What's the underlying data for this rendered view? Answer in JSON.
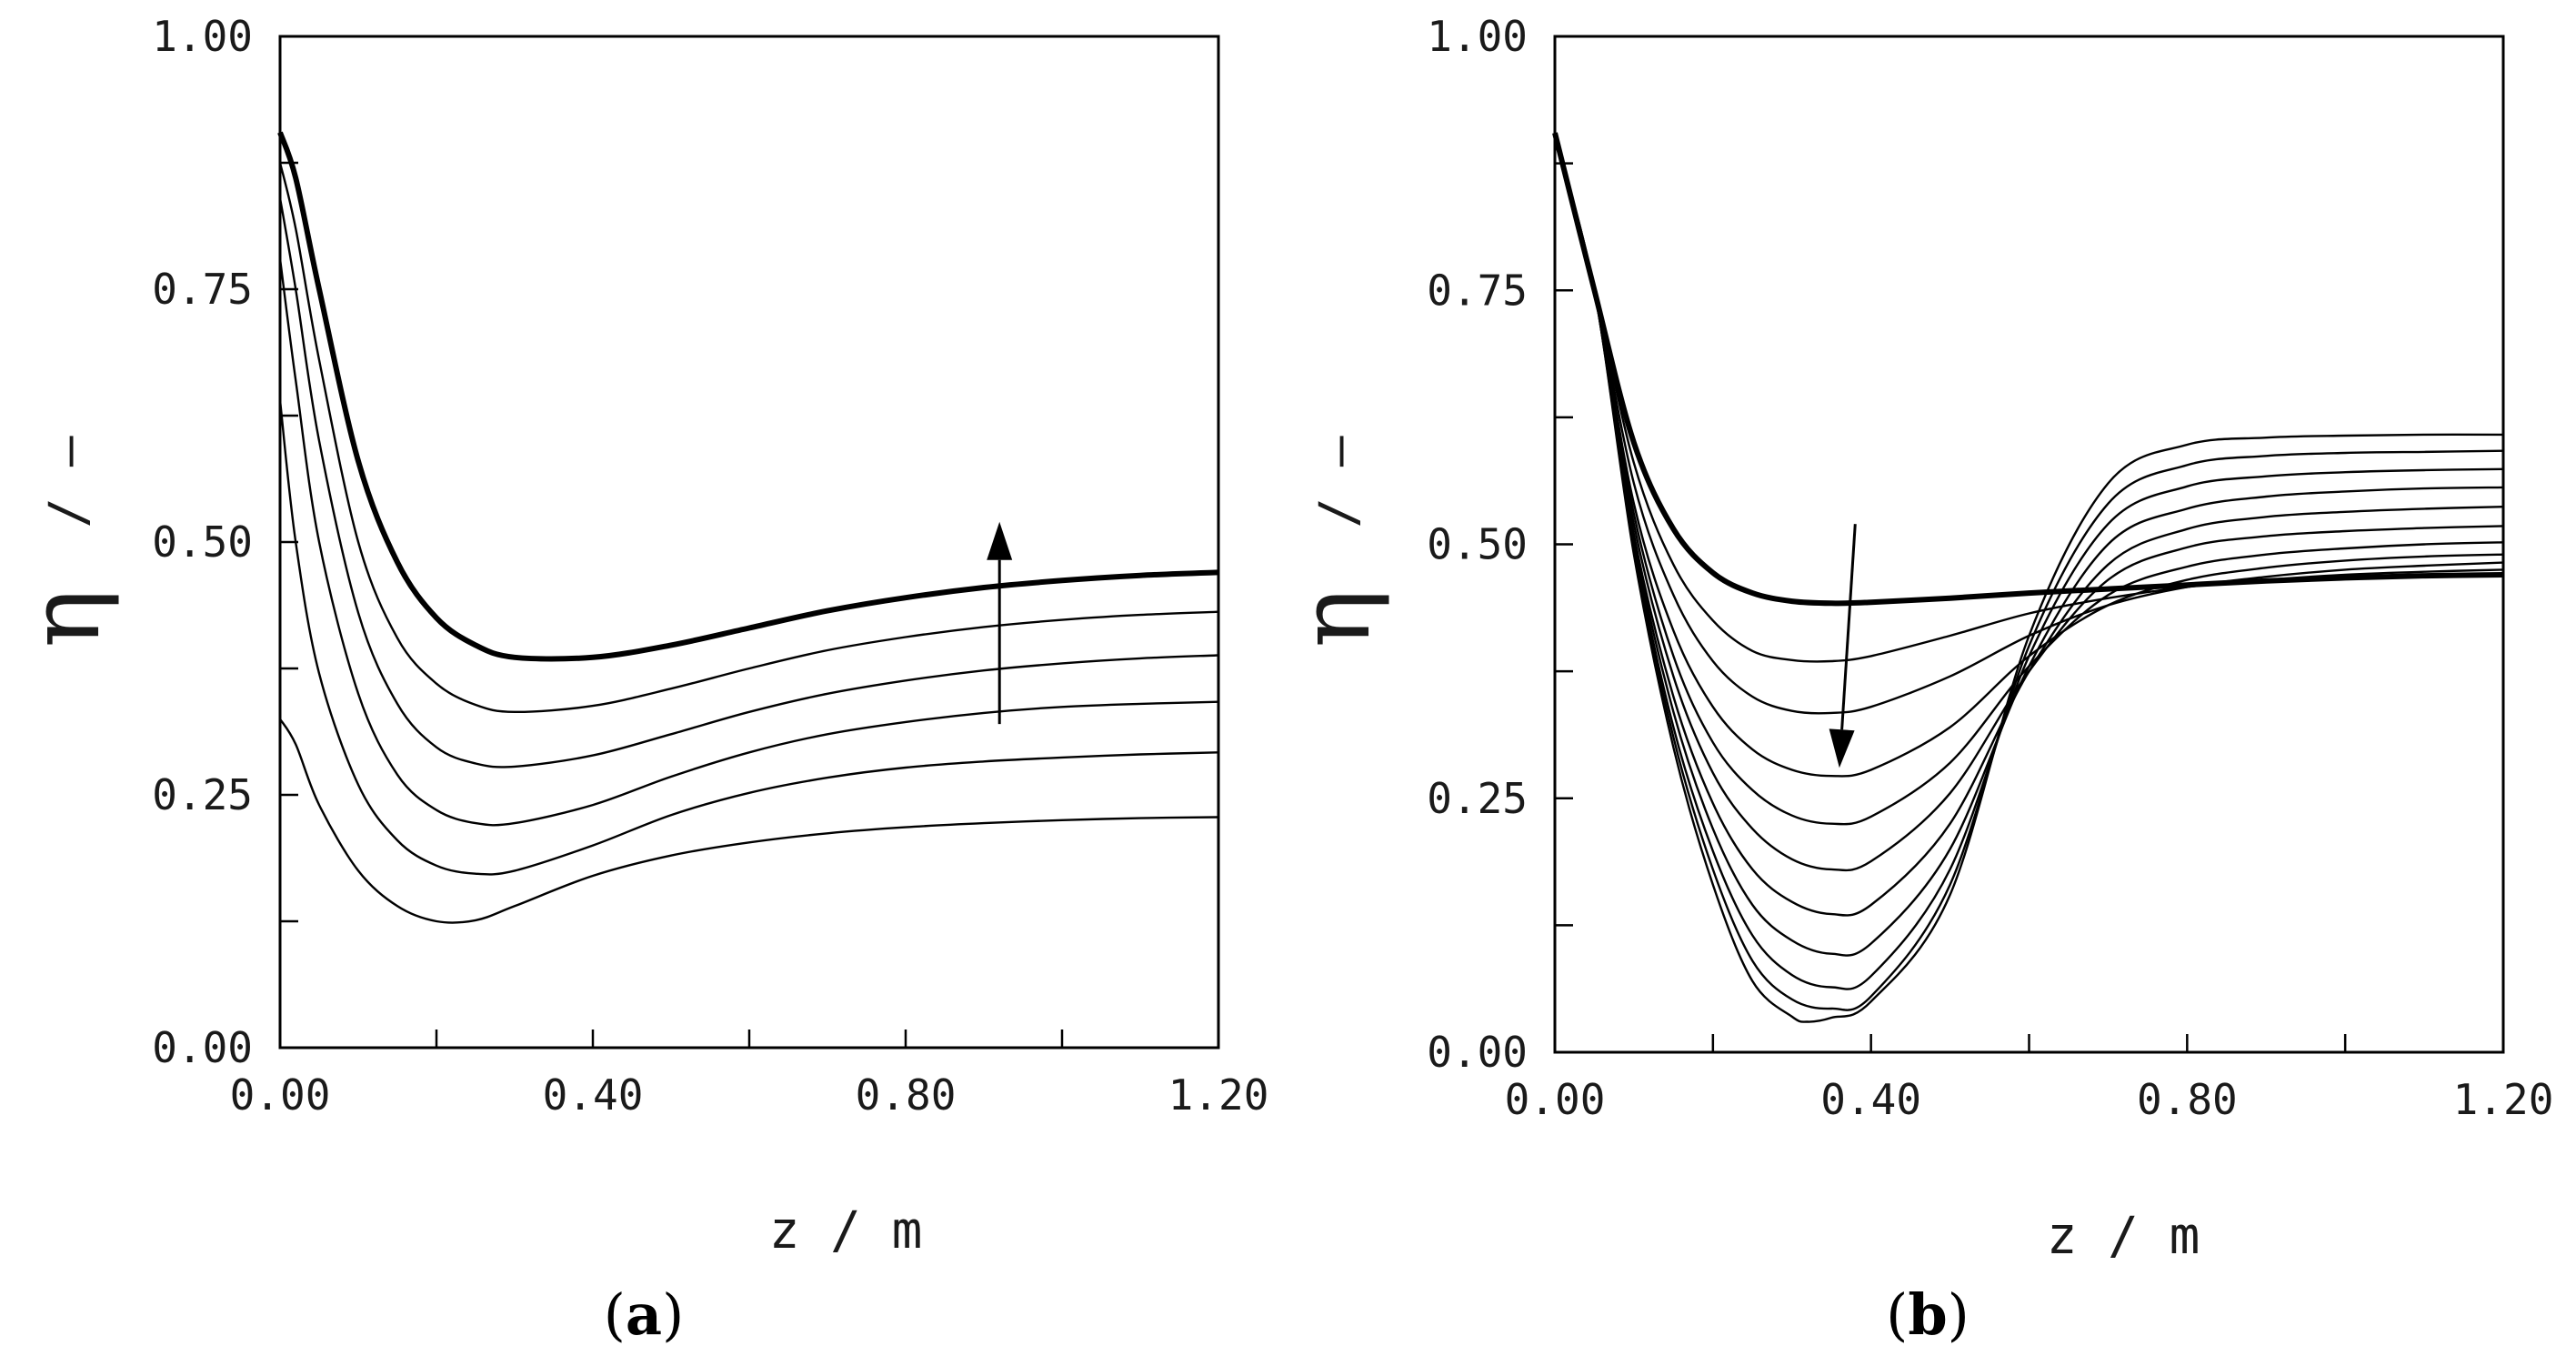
{
  "chart_data": [
    {
      "panel": "a",
      "panel_label": "(a)",
      "panel_letter": "a",
      "type": "line",
      "xlabel": "z / m",
      "ylabel_symbol": "η",
      "ylabel_unit": "/ –",
      "xlim": [
        0,
        1.2
      ],
      "ylim": [
        0,
        1
      ],
      "x_ticks": [
        "0.00",
        "0.40",
        "0.80",
        "1.20"
      ],
      "y_ticks": [
        "0.00",
        "0.25",
        "0.50",
        "0.75",
        "1.00"
      ],
      "arrow_direction": "up",
      "arrow_x": 0.92,
      "arrow_y": [
        0.32,
        0.52
      ],
      "series": [
        {
          "name": "curve-1",
          "x": [
            0,
            0.02,
            0.05,
            0.1,
            0.15,
            0.2,
            0.25,
            0.3,
            0.4,
            0.5,
            0.6,
            0.7,
            0.8,
            0.9,
            1.0,
            1.1,
            1.2
          ],
          "y": [
            0.325,
            0.3,
            0.24,
            0.175,
            0.14,
            0.125,
            0.126,
            0.14,
            0.17,
            0.19,
            0.203,
            0.212,
            0.218,
            0.222,
            0.225,
            0.227,
            0.228
          ]
        },
        {
          "name": "curve-2",
          "x": [
            0,
            0.02,
            0.05,
            0.1,
            0.15,
            0.2,
            0.25,
            0.3,
            0.4,
            0.5,
            0.6,
            0.7,
            0.8,
            0.9,
            1.0,
            1.1,
            1.2
          ],
          "y": [
            0.64,
            0.5,
            0.37,
            0.26,
            0.205,
            0.18,
            0.172,
            0.175,
            0.2,
            0.23,
            0.252,
            0.267,
            0.277,
            0.283,
            0.287,
            0.29,
            0.292
          ]
        },
        {
          "name": "curve-3",
          "x": [
            0,
            0.02,
            0.05,
            0.1,
            0.15,
            0.2,
            0.25,
            0.3,
            0.4,
            0.5,
            0.6,
            0.7,
            0.8,
            0.9,
            1.0,
            1.1,
            1.2
          ],
          "y": [
            0.78,
            0.66,
            0.5,
            0.35,
            0.27,
            0.235,
            0.222,
            0.222,
            0.24,
            0.268,
            0.292,
            0.31,
            0.322,
            0.331,
            0.337,
            0.34,
            0.342
          ]
        },
        {
          "name": "curve-4",
          "x": [
            0,
            0.02,
            0.05,
            0.1,
            0.15,
            0.2,
            0.25,
            0.3,
            0.4,
            0.5,
            0.6,
            0.7,
            0.8,
            0.9,
            1.0,
            1.1,
            1.2
          ],
          "y": [
            0.84,
            0.75,
            0.6,
            0.43,
            0.34,
            0.297,
            0.281,
            0.278,
            0.289,
            0.31,
            0.332,
            0.35,
            0.363,
            0.373,
            0.38,
            0.385,
            0.388
          ]
        },
        {
          "name": "curve-5",
          "x": [
            0,
            0.02,
            0.05,
            0.1,
            0.15,
            0.2,
            0.25,
            0.3,
            0.4,
            0.5,
            0.6,
            0.7,
            0.8,
            0.9,
            1.0,
            1.1,
            1.2
          ],
          "y": [
            0.875,
            0.81,
            0.68,
            0.5,
            0.405,
            0.36,
            0.339,
            0.332,
            0.338,
            0.355,
            0.375,
            0.393,
            0.406,
            0.416,
            0.423,
            0.428,
            0.431
          ]
        },
        {
          "name": "curve-6-bold",
          "bold": true,
          "x": [
            0,
            0.02,
            0.05,
            0.1,
            0.15,
            0.2,
            0.25,
            0.3,
            0.4,
            0.5,
            0.6,
            0.7,
            0.8,
            0.9,
            1.0,
            1.1,
            1.2
          ],
          "y": [
            0.905,
            0.86,
            0.75,
            0.58,
            0.48,
            0.425,
            0.398,
            0.386,
            0.386,
            0.398,
            0.415,
            0.432,
            0.445,
            0.455,
            0.462,
            0.467,
            0.47
          ]
        }
      ]
    },
    {
      "panel": "b",
      "panel_label": "(b)",
      "panel_letter": "b",
      "type": "line",
      "xlabel": "z / m",
      "ylabel_symbol": "η",
      "ylabel_unit": "/ –",
      "xlim": [
        0,
        1.2
      ],
      "ylim": [
        0,
        1
      ],
      "x_ticks": [
        "0.00",
        "0.40",
        "0.80",
        "1.20"
      ],
      "y_ticks": [
        "0.00",
        "0.25",
        "0.50",
        "0.75",
        "1.00"
      ],
      "arrow_direction": "down",
      "arrow_x": [
        0.38,
        0.36
      ],
      "arrow_y": [
        0.52,
        0.28
      ],
      "series": [
        {
          "name": "curve-1-bold",
          "bold": true,
          "x": [
            0,
            0.05,
            0.1,
            0.15,
            0.2,
            0.25,
            0.3,
            0.35,
            0.4,
            0.5,
            0.6,
            0.7,
            0.8,
            0.9,
            1.0,
            1.1,
            1.2
          ],
          "y": [
            0.905,
            0.75,
            0.6,
            0.515,
            0.472,
            0.452,
            0.444,
            0.442,
            0.443,
            0.447,
            0.452,
            0.456,
            0.46,
            0.464,
            0.467,
            0.469,
            0.47
          ]
        },
        {
          "name": "curve-2",
          "x": [
            0,
            0.05,
            0.1,
            0.15,
            0.2,
            0.25,
            0.3,
            0.35,
            0.4,
            0.5,
            0.6,
            0.7,
            0.8,
            0.9,
            1.0,
            1.1,
            1.2
          ],
          "y": [
            0.9,
            0.75,
            0.58,
            0.48,
            0.425,
            0.395,
            0.386,
            0.385,
            0.39,
            0.41,
            0.432,
            0.447,
            0.458,
            0.465,
            0.47,
            0.473,
            0.475
          ]
        },
        {
          "name": "curve-3",
          "x": [
            0,
            0.05,
            0.1,
            0.15,
            0.2,
            0.25,
            0.3,
            0.35,
            0.4,
            0.5,
            0.6,
            0.7,
            0.8,
            0.9,
            1.0,
            1.1,
            1.2
          ],
          "y": [
            0.9,
            0.75,
            0.56,
            0.45,
            0.385,
            0.35,
            0.336,
            0.334,
            0.34,
            0.37,
            0.41,
            0.44,
            0.458,
            0.468,
            0.475,
            0.479,
            0.482
          ]
        },
        {
          "name": "curve-4",
          "x": [
            0,
            0.05,
            0.1,
            0.15,
            0.2,
            0.25,
            0.3,
            0.35,
            0.4,
            0.5,
            0.6,
            0.7,
            0.8,
            0.9,
            1.0,
            1.1,
            1.2
          ],
          "y": [
            0.9,
            0.75,
            0.54,
            0.415,
            0.34,
            0.298,
            0.278,
            0.272,
            0.278,
            0.32,
            0.39,
            0.44,
            0.465,
            0.477,
            0.484,
            0.488,
            0.49
          ]
        },
        {
          "name": "curve-5",
          "x": [
            0,
            0.05,
            0.1,
            0.15,
            0.2,
            0.25,
            0.3,
            0.35,
            0.4,
            0.5,
            0.6,
            0.7,
            0.8,
            0.9,
            1.0,
            1.1,
            1.2
          ],
          "y": [
            0.9,
            0.75,
            0.53,
            0.39,
            0.305,
            0.258,
            0.233,
            0.225,
            0.232,
            0.285,
            0.38,
            0.45,
            0.478,
            0.49,
            0.496,
            0.5,
            0.502
          ]
        },
        {
          "name": "curve-6",
          "x": [
            0,
            0.05,
            0.1,
            0.15,
            0.2,
            0.25,
            0.3,
            0.35,
            0.4,
            0.5,
            0.6,
            0.7,
            0.8,
            0.9,
            1.0,
            1.1,
            1.2
          ],
          "y": [
            0.9,
            0.75,
            0.52,
            0.37,
            0.275,
            0.22,
            0.19,
            0.18,
            0.188,
            0.255,
            0.375,
            0.465,
            0.497,
            0.508,
            0.513,
            0.516,
            0.518
          ]
        },
        {
          "name": "curve-7",
          "x": [
            0,
            0.05,
            0.1,
            0.15,
            0.2,
            0.25,
            0.3,
            0.35,
            0.4,
            0.5,
            0.6,
            0.7,
            0.8,
            0.9,
            1.0,
            1.1,
            1.2
          ],
          "y": [
            0.9,
            0.75,
            0.51,
            0.35,
            0.245,
            0.18,
            0.148,
            0.136,
            0.145,
            0.225,
            0.375,
            0.48,
            0.515,
            0.527,
            0.532,
            0.535,
            0.537
          ]
        },
        {
          "name": "curve-8",
          "x": [
            0,
            0.05,
            0.1,
            0.15,
            0.2,
            0.25,
            0.3,
            0.35,
            0.4,
            0.5,
            0.6,
            0.7,
            0.8,
            0.9,
            1.0,
            1.1,
            1.2
          ],
          "y": [
            0.9,
            0.75,
            0.505,
            0.335,
            0.22,
            0.145,
            0.11,
            0.097,
            0.107,
            0.2,
            0.38,
            0.5,
            0.535,
            0.547,
            0.552,
            0.555,
            0.556
          ]
        },
        {
          "name": "curve-9",
          "x": [
            0,
            0.05,
            0.1,
            0.15,
            0.2,
            0.25,
            0.3,
            0.35,
            0.4,
            0.5,
            0.6,
            0.7,
            0.8,
            0.9,
            1.0,
            1.1,
            1.2
          ],
          "y": [
            0.9,
            0.75,
            0.5,
            0.32,
            0.198,
            0.115,
            0.076,
            0.064,
            0.075,
            0.18,
            0.39,
            0.52,
            0.557,
            0.567,
            0.571,
            0.573,
            0.574
          ]
        },
        {
          "name": "curve-10",
          "x": [
            0,
            0.05,
            0.1,
            0.15,
            0.2,
            0.25,
            0.3,
            0.35,
            0.4,
            0.5,
            0.6,
            0.7,
            0.8,
            0.9,
            1.0,
            1.1,
            1.2
          ],
          "y": [
            0.9,
            0.75,
            0.495,
            0.31,
            0.18,
            0.09,
            0.052,
            0.043,
            0.055,
            0.165,
            0.4,
            0.54,
            0.578,
            0.587,
            0.59,
            0.591,
            0.592
          ]
        },
        {
          "name": "curve-11",
          "x": [
            0,
            0.05,
            0.1,
            0.15,
            0.2,
            0.25,
            0.3,
            0.32,
            0.35,
            0.4,
            0.5,
            0.6,
            0.7,
            0.8,
            0.9,
            1.0,
            1.1,
            1.2
          ],
          "y": [
            0.9,
            0.75,
            0.49,
            0.3,
            0.165,
            0.07,
            0.035,
            0.03,
            0.034,
            0.05,
            0.155,
            0.41,
            0.56,
            0.598,
            0.605,
            0.607,
            0.608,
            0.608
          ]
        }
      ]
    }
  ]
}
